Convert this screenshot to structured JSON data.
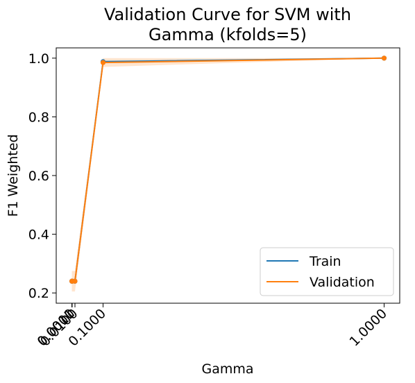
{
  "chart_data": {
    "type": "line",
    "title_lines": [
      "Validation Curve for SVM with",
      "Gamma (kfolds=5)"
    ],
    "xlabel": "Gamma",
    "ylabel": "F1 Weighted",
    "x": [
      0.0001,
      0.001,
      0.01,
      0.1,
      1.0
    ],
    "x_tick_values": [
      0.0001,
      0.001,
      0.01,
      0.1,
      1.0
    ],
    "x_tick_labels": [
      "0.0001",
      "0.0010",
      "0.0100",
      "0.1000",
      "1.0000"
    ],
    "xlim": [
      -0.05,
      1.05
    ],
    "ylim": [
      0.165,
      1.035
    ],
    "y_tick_values": [
      0.2,
      0.4,
      0.6,
      0.8,
      1.0
    ],
    "y_tick_labels": [
      "0.2",
      "0.4",
      "0.6",
      "0.8",
      "1.0"
    ],
    "series": [
      {
        "name": "Train",
        "color": "#1f77b4",
        "values": [
          0.24,
          0.24,
          0.24,
          0.988,
          1.0
        ],
        "std": [
          0.0,
          0.0,
          0.0,
          0.004,
          0.0
        ]
      },
      {
        "name": "Validation",
        "color": "#ff7f0e",
        "values": [
          0.24,
          0.24,
          0.24,
          0.985,
          1.0
        ],
        "std": [
          0.035,
          0.035,
          0.035,
          0.015,
          0.0
        ]
      }
    ],
    "legend_position": "lower-right",
    "grid": false
  }
}
